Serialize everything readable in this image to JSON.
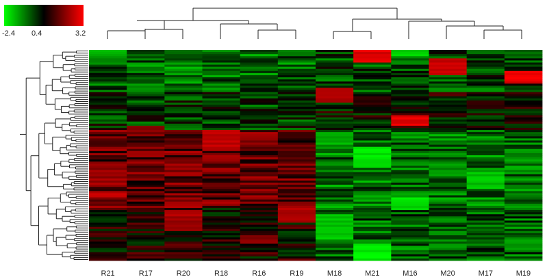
{
  "chart_data": {
    "type": "heatmap",
    "title": "",
    "xlabel": "",
    "ylabel": "",
    "columns": [
      "R21",
      "R17",
      "R20",
      "R18",
      "R16",
      "R19",
      "M18",
      "M21",
      "M16",
      "M20",
      "M17",
      "M19"
    ],
    "row_count": 100,
    "color_scale": {
      "min": -2.4,
      "mid": 0.4,
      "max": 3.2,
      "tick_labels": [
        "-2.4",
        "0.4",
        "3.2"
      ],
      "colors": {
        "low": "#00ff00",
        "mid": "#000000",
        "high": "#ff0000"
      }
    },
    "column_dendrogram": "hierarchical clustering: {R21, R17, R20} + {R18, R16, R19} vs {M18, M21} + {M16, M20, M17, M19}",
    "row_dendrogram": "hierarchical clustering of genes (left side)",
    "row_group_pattern": [
      {
        "rows": "1-20",
        "R": "green",
        "M": "mixed, mostly green with red spots (M21 top, M20, M19)"
      },
      {
        "rows": "21-38",
        "R": "mixed green/dark",
        "M": "mixed (M18 red block, M16 red block)"
      },
      {
        "rows": "39-75",
        "R": "mostly red/dark",
        "M": "mostly green"
      },
      {
        "rows": "76-100",
        "R": "mixed, red in R20",
        "M": "green"
      }
    ]
  }
}
